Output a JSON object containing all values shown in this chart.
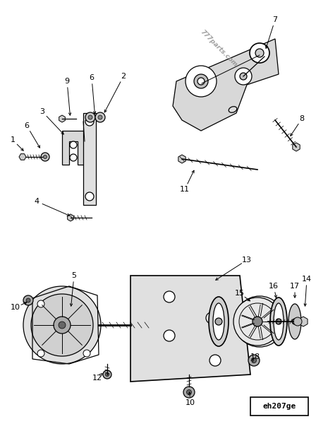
{
  "bg_color": "#ffffff",
  "line_color": "#000000",
  "watermark": "777parts.com",
  "diagram_code": "eh207ge"
}
